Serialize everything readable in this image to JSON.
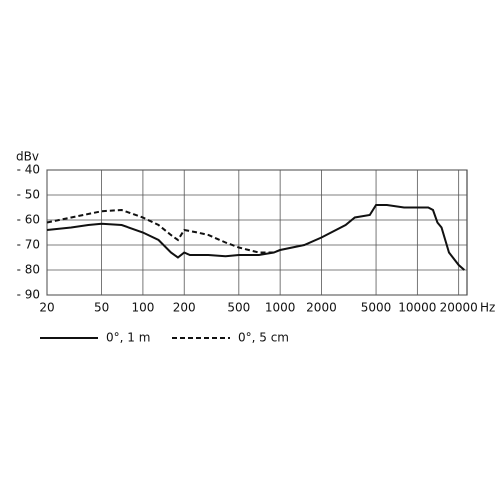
{
  "chart_data": {
    "type": "line",
    "y_label": "dBv",
    "x_label": "Hz",
    "log_x": true,
    "grid": true,
    "xlim": [
      20,
      23000
    ],
    "ylim": [
      -90,
      -40
    ],
    "xticks": [
      20,
      50,
      100,
      200,
      500,
      1000,
      2000,
      5000,
      10000,
      20000
    ],
    "yticks": [
      {
        "value": -40,
        "label": "- 40"
      },
      {
        "value": -50,
        "label": "- 50"
      },
      {
        "value": -60,
        "label": "- 60"
      },
      {
        "value": -70,
        "label": "- 70"
      },
      {
        "value": -80,
        "label": "- 80"
      },
      {
        "value": -90,
        "label": "- 90"
      }
    ],
    "series": [
      {
        "name": "0°, 1 m",
        "color": "#111111",
        "dash": "solid",
        "x": [
          20,
          30,
          40,
          50,
          70,
          100,
          130,
          160,
          180,
          200,
          220,
          300,
          400,
          500,
          700,
          900,
          1000,
          1500,
          2000,
          3000,
          3500,
          4500,
          5000,
          6000,
          8000,
          10000,
          12000,
          13000,
          14000,
          15000,
          17000,
          20000,
          22000
        ],
        "values": [
          -64,
          -63,
          -62,
          -61.5,
          -62,
          -65,
          -68,
          -73,
          -75,
          -73,
          -74,
          -74,
          -74.5,
          -74,
          -74,
          -73,
          -72,
          -70,
          -67,
          -62,
          -59,
          -58,
          -54,
          -54,
          -55,
          -55,
          -55,
          -56,
          -61,
          -63,
          -73,
          -78,
          -80
        ]
      },
      {
        "name": "0°, 5 cm",
        "color": "#111111",
        "dash": "dashed",
        "x": [
          20,
          30,
          50,
          70,
          100,
          130,
          160,
          180,
          200,
          250,
          300,
          400,
          500,
          700,
          900,
          1000
        ],
        "values": [
          -61,
          -59,
          -56.5,
          -56,
          -59,
          -62,
          -66,
          -68,
          -64,
          -65,
          -66,
          -69,
          -71,
          -73,
          -73,
          -72
        ]
      }
    ]
  }
}
